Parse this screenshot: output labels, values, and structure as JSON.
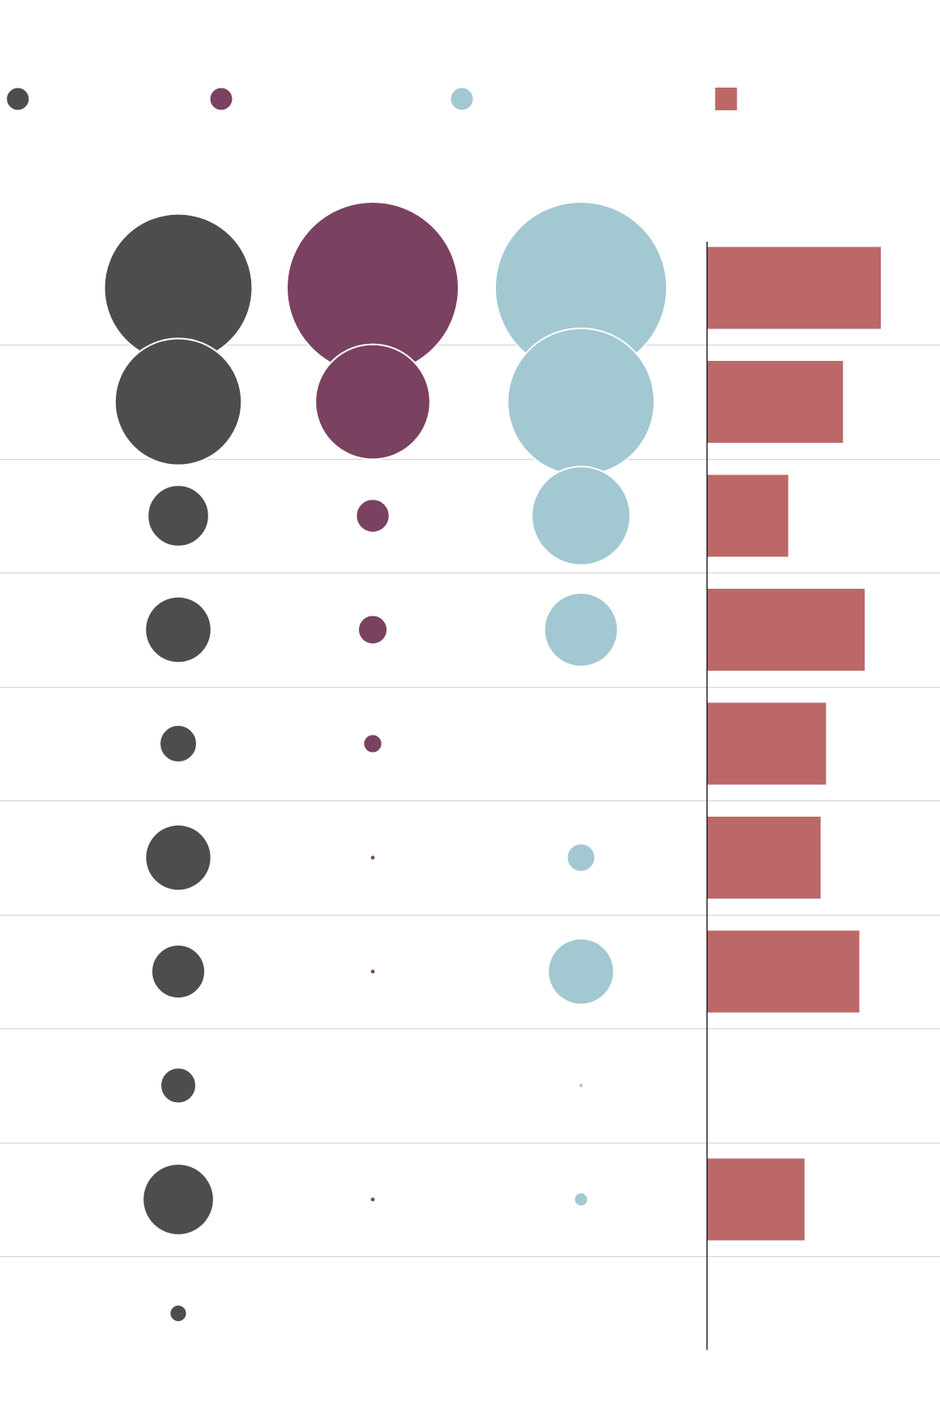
{
  "chart_data": {
    "type": "bubble-matrix-with-bars",
    "rows": 10,
    "legend": [
      {
        "series": "series_a",
        "shape": "circle",
        "color": "#4d4d4d"
      },
      {
        "series": "series_b",
        "shape": "circle",
        "color": "#7b4160"
      },
      {
        "series": "series_c",
        "shape": "circle",
        "color": "#a2c8d1"
      },
      {
        "series": "series_d",
        "shape": "square",
        "color": "#bc6868"
      }
    ],
    "bubble_series": [
      {
        "id": "series_a",
        "color": "#4d4d4d",
        "values": [
          0.744,
          0.544,
          0.127,
          0.148,
          0.047,
          0.147,
          0.097,
          0.043,
          0.171,
          0.01
        ]
      },
      {
        "id": "series_b",
        "color": "#7b4160",
        "values": [
          1.0,
          0.447,
          0.038,
          0.029,
          0.012,
          0.0005,
          0.0005,
          null,
          0.0005,
          null
        ]
      },
      {
        "id": "series_c",
        "color": "#a2c8d1",
        "values": [
          1.0,
          0.731,
          0.329,
          0.183,
          null,
          0.027,
          0.147,
          0.0003,
          0.005,
          null
        ]
      }
    ],
    "bar_series": {
      "id": "series_d",
      "color": "#bc6868",
      "values": [
        1.0,
        0.782,
        0.466,
        0.907,
        0.684,
        0.653,
        0.876,
        null,
        0.56,
        null
      ],
      "xlim": [
        0,
        1
      ]
    },
    "gridlines": true
  }
}
